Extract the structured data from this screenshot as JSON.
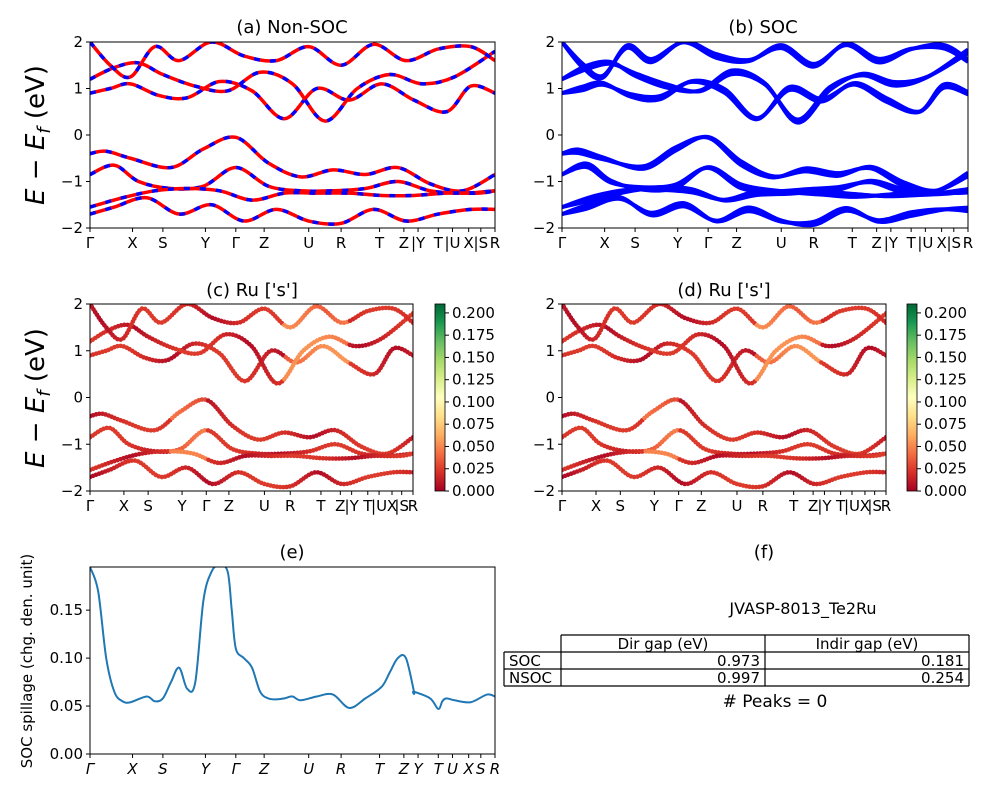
{
  "figure": {
    "material": "JVASP-8013_Te2Ru",
    "peaks_label": "# Peaks = 0"
  },
  "y_label_energy_tex": "E − E_f (eV)",
  "kpath_labels": [
    "Γ",
    "X",
    "S",
    "Y",
    "Γ",
    "Z",
    "U",
    "R",
    "T",
    "Z|Y",
    "T|U",
    "X|S",
    "R"
  ],
  "colors": {
    "nonsoc_primary": "#ff0000",
    "nonsoc_dash": "#0000ff",
    "soc": "#0000ff",
    "spill_line": "#1f77b4",
    "cmap": [
      "#a50026",
      "#d73027",
      "#f46d43",
      "#fdae61",
      "#fee08b",
      "#ffffbf",
      "#d9ef8b",
      "#a6d96a",
      "#66bd63",
      "#1a9850",
      "#006837"
    ]
  },
  "chart_data": [
    {
      "panel": "a",
      "type": "line",
      "title": "(a) Non-SOC",
      "ylabel": "E − E_f (eV)",
      "ylim": [
        -2,
        2
      ],
      "yticks": [
        -2,
        -1,
        0,
        1,
        2
      ],
      "xticks": [
        "Γ",
        "X",
        "S",
        "Y",
        "Γ",
        "Z",
        "U",
        "R",
        "T",
        "Z",
        "|Y",
        "T",
        "|U",
        "X",
        "|S",
        "R"
      ],
      "style": "red solid with blue dashes",
      "bands": [
        {
          "name": "v1",
          "x": [
            0,
            0.04,
            0.1,
            0.2,
            0.28,
            0.36,
            0.44,
            0.52,
            0.6,
            0.68,
            0.76,
            0.84,
            0.92,
            1.0
          ],
          "y": [
            -0.4,
            -0.35,
            -0.5,
            -0.7,
            -0.3,
            -0.05,
            -0.6,
            -0.9,
            -0.75,
            -0.85,
            -0.7,
            -1.05,
            -1.2,
            -0.85
          ]
        },
        {
          "name": "v2",
          "x": [
            0,
            0.06,
            0.12,
            0.2,
            0.28,
            0.36,
            0.44,
            0.52,
            0.6,
            0.68,
            0.76,
            0.84,
            0.92,
            1.0
          ],
          "y": [
            -0.85,
            -0.65,
            -1.0,
            -1.15,
            -1.1,
            -0.7,
            -1.1,
            -1.2,
            -1.2,
            -1.15,
            -1.0,
            -1.2,
            -1.25,
            -1.2
          ]
        },
        {
          "name": "v3",
          "x": [
            0,
            0.08,
            0.16,
            0.24,
            0.32,
            0.4,
            0.48,
            0.56,
            0.64,
            0.72,
            0.8,
            0.88,
            0.96,
            1.0
          ],
          "y": [
            -1.55,
            -1.35,
            -1.2,
            -1.15,
            -1.2,
            -1.4,
            -1.25,
            -1.25,
            -1.25,
            -1.3,
            -1.3,
            -1.25,
            -1.25,
            -1.2
          ]
        },
        {
          "name": "v4",
          "x": [
            0,
            0.06,
            0.14,
            0.22,
            0.3,
            0.38,
            0.46,
            0.54,
            0.62,
            0.7,
            0.78,
            0.86,
            0.94,
            1.0
          ],
          "y": [
            -1.7,
            -1.55,
            -1.35,
            -1.7,
            -1.5,
            -1.85,
            -1.6,
            -1.85,
            -1.9,
            -1.6,
            -1.85,
            -1.7,
            -1.6,
            -1.6
          ]
        },
        {
          "name": "c1",
          "x": [
            0,
            0.05,
            0.1,
            0.17,
            0.24,
            0.32,
            0.4,
            0.48,
            0.56,
            0.64,
            0.72,
            0.8,
            0.88,
            0.94,
            1.0
          ],
          "y": [
            0.9,
            1.0,
            1.1,
            0.85,
            0.8,
            1.15,
            0.95,
            0.35,
            1.0,
            0.75,
            1.1,
            0.75,
            0.5,
            1.05,
            0.9
          ]
        },
        {
          "name": "c2",
          "x": [
            0,
            0.06,
            0.12,
            0.18,
            0.26,
            0.34,
            0.42,
            0.5,
            0.58,
            0.66,
            0.74,
            0.82,
            0.9,
            1.0
          ],
          "y": [
            1.2,
            1.45,
            1.55,
            1.3,
            1.05,
            0.95,
            1.35,
            1.1,
            0.3,
            1.0,
            1.3,
            1.1,
            1.25,
            1.8
          ]
        },
        {
          "name": "c3",
          "x": [
            0,
            0.05,
            0.1,
            0.16,
            0.22,
            0.3,
            0.38,
            0.46,
            0.54,
            0.62,
            0.7,
            0.78,
            0.86,
            0.94,
            1.0
          ],
          "y": [
            2.0,
            1.5,
            1.25,
            1.9,
            1.6,
            2.0,
            1.7,
            1.6,
            1.9,
            1.5,
            1.95,
            1.6,
            1.85,
            1.9,
            1.6
          ]
        }
      ]
    },
    {
      "panel": "b",
      "type": "line",
      "title": "(b) SOC",
      "ylim": [
        -2,
        2
      ],
      "yticks": [
        -2,
        -1,
        0,
        1,
        2
      ],
      "xticks": [
        "Γ",
        "X",
        "S",
        "Y",
        "Γ",
        "Z",
        "U",
        "R",
        "T",
        "Z",
        "|Y",
        "T",
        "|U",
        "X",
        "|S",
        "R"
      ],
      "style": "blue thick"
    },
    {
      "panel": "c",
      "type": "scatter",
      "title": "(c)  Ru ['s']",
      "ylabel": "E − E_f (eV)",
      "ylim": [
        -2,
        2
      ],
      "yticks": [
        -2,
        -1,
        0,
        1,
        2
      ],
      "xticks": [
        "Γ",
        "X",
        "S",
        "Y",
        "Γ",
        "Z",
        "U",
        "R",
        "T",
        "Z",
        "|Y",
        "T",
        "|U",
        "X",
        "|S",
        "R"
      ],
      "colorbar": {
        "ticks": [
          "0.000",
          "0.025",
          "0.050",
          "0.075",
          "0.100",
          "0.125",
          "0.150",
          "0.175",
          "0.200"
        ],
        "range": [
          0,
          0.21
        ]
      }
    },
    {
      "panel": "d",
      "type": "scatter",
      "title": "(d) Ru ['s']",
      "ylim": [
        -2,
        2
      ],
      "yticks": [
        -2,
        -1,
        0,
        1,
        2
      ],
      "xticks": [
        "Γ",
        "X",
        "S",
        "Y",
        "Γ",
        "Z",
        "U",
        "R",
        "T",
        "Z",
        "|Y",
        "T",
        "|U",
        "X",
        "|S",
        "R"
      ],
      "colorbar": {
        "ticks": [
          "0.000",
          "0.025",
          "0.050",
          "0.075",
          "0.100",
          "0.125",
          "0.150",
          "0.175",
          "0.200"
        ],
        "range": [
          0,
          0.21
        ]
      }
    },
    {
      "panel": "e",
      "type": "line",
      "title": "(e)",
      "ylabel": "SOC spillage (chg. den. unit)",
      "ylim": [
        0.0,
        0.195
      ],
      "yticks": [
        "0.00",
        "0.05",
        "0.10",
        "0.15"
      ],
      "xticks": [
        "Γ",
        "X",
        "S",
        "Y",
        "Γ",
        "Z",
        "U",
        "R",
        "T",
        "Z",
        "Y",
        "T",
        "U",
        "X",
        "S",
        "R"
      ],
      "x": [
        0,
        0.02,
        0.04,
        0.06,
        0.08,
        0.1,
        0.14,
        0.16,
        0.18,
        0.2,
        0.22,
        0.24,
        0.26,
        0.28,
        0.3,
        0.32,
        0.34,
        0.35,
        0.36,
        0.38,
        0.4,
        0.42,
        0.44,
        0.46,
        0.48,
        0.5,
        0.52,
        0.56,
        0.6,
        0.64,
        0.68,
        0.72,
        0.74,
        0.76,
        0.78,
        0.8,
        0.8,
        0.84,
        0.86,
        0.87,
        0.88,
        0.9,
        0.94,
        0.98,
        1.0
      ],
      "y": [
        0.195,
        0.17,
        0.1,
        0.065,
        0.055,
        0.054,
        0.06,
        0.055,
        0.058,
        0.075,
        0.09,
        0.068,
        0.075,
        0.16,
        0.19,
        0.197,
        0.19,
        0.15,
        0.11,
        0.1,
        0.09,
        0.065,
        0.058,
        0.057,
        0.058,
        0.06,
        0.056,
        0.06,
        0.062,
        0.048,
        0.058,
        0.07,
        0.085,
        0.1,
        0.1,
        0.065,
        0.065,
        0.058,
        0.047,
        0.055,
        0.058,
        0.056,
        0.054,
        0.062,
        0.06
      ]
    }
  ],
  "table": {
    "title": "(f)",
    "headers": [
      "",
      "Dir gap (eV)",
      "Indir gap (eV)"
    ],
    "rows": [
      {
        "label": "SOC",
        "dir": "0.973",
        "indir": "0.181"
      },
      {
        "label": "NSOC",
        "dir": "0.997",
        "indir": "0.254"
      }
    ]
  }
}
